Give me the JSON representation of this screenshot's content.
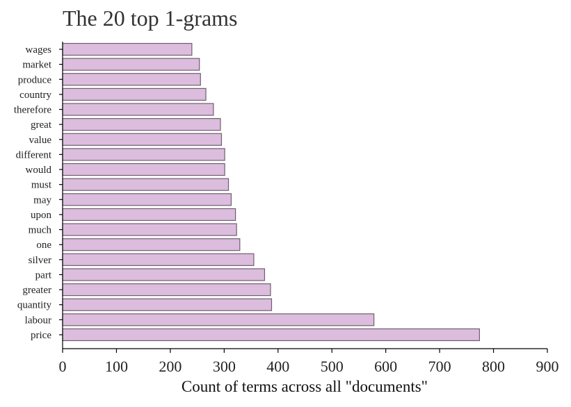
{
  "chart_data": {
    "type": "bar",
    "orientation": "horizontal",
    "title": "The 20 top 1-grams",
    "xlabel": "Count of terms across all \"documents\"",
    "ylabel": "",
    "xlim": [
      0,
      900
    ],
    "xticks": [
      0,
      100,
      200,
      300,
      400,
      500,
      600,
      700,
      800,
      900
    ],
    "categories": [
      "wages",
      "market",
      "produce",
      "country",
      "therefore",
      "great",
      "value",
      "different",
      "would",
      "must",
      "may",
      "upon",
      "much",
      "one",
      "silver",
      "part",
      "greater",
      "quantity",
      "labour",
      "price"
    ],
    "values": [
      240,
      254,
      256,
      266,
      280,
      293,
      295,
      301,
      301,
      308,
      313,
      321,
      323,
      329,
      355,
      375,
      386,
      388,
      578,
      774
    ],
    "grid": false,
    "bar_color": "#dcbddd",
    "edge_color": "#6e5e6e"
  }
}
